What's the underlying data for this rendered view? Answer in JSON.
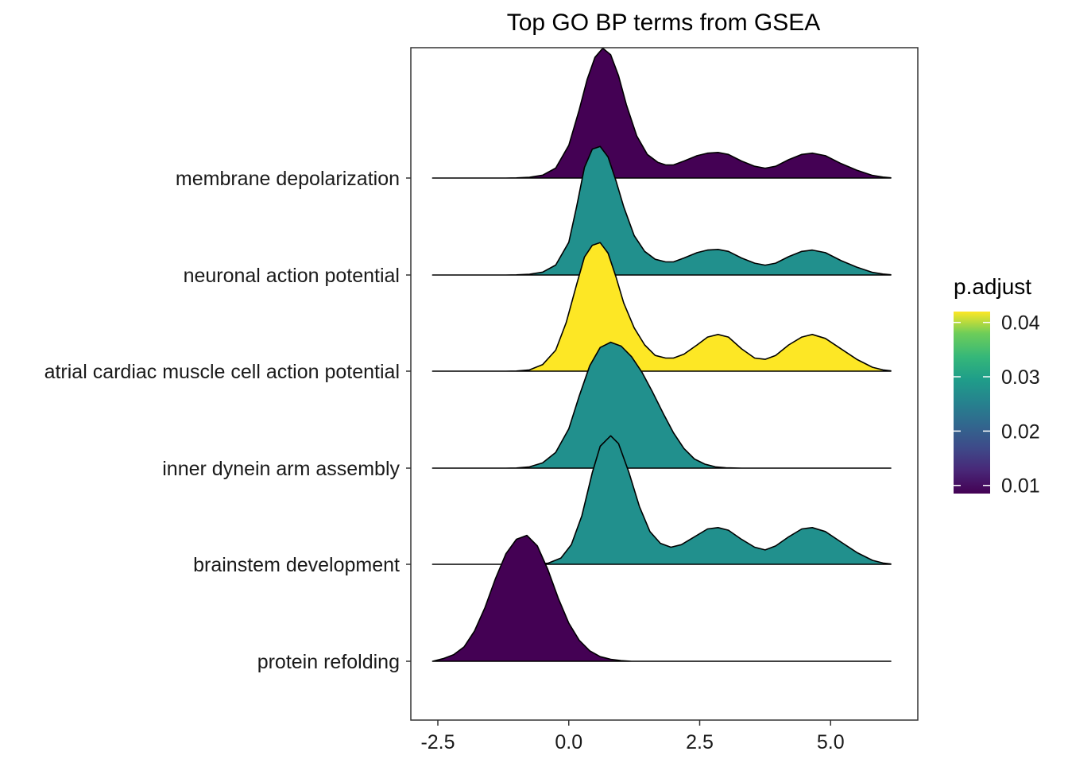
{
  "chart_data": {
    "type": "ridgeline",
    "title": "Top GO BP terms from GSEA",
    "xlabel": "",
    "ylabel": "",
    "xlim": [
      -3.0,
      6.5
    ],
    "x_ticks": [
      -2.5,
      0.0,
      2.5,
      5.0
    ],
    "x_tick_labels": [
      "-2.5",
      "0.0",
      "2.5",
      "5.0"
    ],
    "grid": false,
    "categories": [
      "membrane depolarization",
      "neuronal action potential",
      "atrial cardiac muscle cell action potential",
      "inner dynein arm assembly",
      "brainstem development",
      "protein refolding"
    ],
    "series": [
      {
        "category": "membrane depolarization",
        "p_adjust": 0.0085,
        "color": "#440154",
        "density": [
          [
            -2.6,
            0.0
          ],
          [
            -1.2,
            0.0
          ],
          [
            -1.0,
            0.001
          ],
          [
            -0.75,
            0.006
          ],
          [
            -0.5,
            0.022
          ],
          [
            -0.25,
            0.076
          ],
          [
            0.0,
            0.25
          ],
          [
            0.2,
            0.52
          ],
          [
            0.35,
            0.75
          ],
          [
            0.5,
            0.92
          ],
          [
            0.65,
            0.99
          ],
          [
            0.8,
            0.94
          ],
          [
            0.95,
            0.78
          ],
          [
            1.1,
            0.56
          ],
          [
            1.3,
            0.32
          ],
          [
            1.5,
            0.18
          ],
          [
            1.7,
            0.12
          ],
          [
            1.85,
            0.1
          ],
          [
            2.0,
            0.1
          ],
          [
            2.2,
            0.13
          ],
          [
            2.45,
            0.17
          ],
          [
            2.65,
            0.19
          ],
          [
            2.85,
            0.195
          ],
          [
            3.05,
            0.18
          ],
          [
            3.3,
            0.13
          ],
          [
            3.55,
            0.09
          ],
          [
            3.75,
            0.075
          ],
          [
            3.95,
            0.09
          ],
          [
            4.2,
            0.14
          ],
          [
            4.45,
            0.18
          ],
          [
            4.65,
            0.19
          ],
          [
            4.9,
            0.17
          ],
          [
            5.2,
            0.11
          ],
          [
            5.5,
            0.06
          ],
          [
            5.8,
            0.02
          ],
          [
            6.0,
            0.007
          ],
          [
            6.15,
            0.002
          ]
        ]
      },
      {
        "category": "neuronal action potential",
        "p_adjust": 0.0275,
        "color": "#21908D",
        "density": [
          [
            -2.6,
            0.0
          ],
          [
            -1.2,
            0.0
          ],
          [
            -1.0,
            0.001
          ],
          [
            -0.75,
            0.006
          ],
          [
            -0.5,
            0.022
          ],
          [
            -0.25,
            0.076
          ],
          [
            0.0,
            0.25
          ],
          [
            0.15,
            0.52
          ],
          [
            0.3,
            0.82
          ],
          [
            0.45,
            0.96
          ],
          [
            0.6,
            0.98
          ],
          [
            0.75,
            0.9
          ],
          [
            0.9,
            0.72
          ],
          [
            1.05,
            0.52
          ],
          [
            1.25,
            0.3
          ],
          [
            1.45,
            0.18
          ],
          [
            1.65,
            0.12
          ],
          [
            1.85,
            0.1
          ],
          [
            2.0,
            0.1
          ],
          [
            2.2,
            0.13
          ],
          [
            2.45,
            0.17
          ],
          [
            2.65,
            0.19
          ],
          [
            2.85,
            0.195
          ],
          [
            3.05,
            0.18
          ],
          [
            3.3,
            0.13
          ],
          [
            3.55,
            0.09
          ],
          [
            3.75,
            0.075
          ],
          [
            3.95,
            0.09
          ],
          [
            4.2,
            0.14
          ],
          [
            4.45,
            0.18
          ],
          [
            4.65,
            0.19
          ],
          [
            4.9,
            0.17
          ],
          [
            5.2,
            0.11
          ],
          [
            5.5,
            0.06
          ],
          [
            5.8,
            0.02
          ],
          [
            6.0,
            0.007
          ],
          [
            6.15,
            0.002
          ]
        ]
      },
      {
        "category": "atrial cardiac muscle cell action potential",
        "p_adjust": 0.041,
        "color": "#FDE725",
        "density": [
          [
            -2.6,
            0.0
          ],
          [
            -1.2,
            0.0
          ],
          [
            -1.0,
            0.001
          ],
          [
            -0.75,
            0.01
          ],
          [
            -0.5,
            0.05
          ],
          [
            -0.25,
            0.16
          ],
          [
            -0.05,
            0.37
          ],
          [
            0.15,
            0.66
          ],
          [
            0.3,
            0.87
          ],
          [
            0.45,
            0.96
          ],
          [
            0.6,
            0.98
          ],
          [
            0.75,
            0.9
          ],
          [
            0.9,
            0.72
          ],
          [
            1.05,
            0.52
          ],
          [
            1.25,
            0.33
          ],
          [
            1.45,
            0.2
          ],
          [
            1.65,
            0.12
          ],
          [
            1.85,
            0.1
          ],
          [
            2.0,
            0.1
          ],
          [
            2.2,
            0.13
          ],
          [
            2.45,
            0.2
          ],
          [
            2.65,
            0.26
          ],
          [
            2.85,
            0.28
          ],
          [
            3.05,
            0.26
          ],
          [
            3.3,
            0.17
          ],
          [
            3.55,
            0.1
          ],
          [
            3.75,
            0.09
          ],
          [
            3.95,
            0.12
          ],
          [
            4.2,
            0.2
          ],
          [
            4.45,
            0.26
          ],
          [
            4.65,
            0.28
          ],
          [
            4.9,
            0.25
          ],
          [
            5.2,
            0.17
          ],
          [
            5.5,
            0.09
          ],
          [
            5.8,
            0.03
          ],
          [
            6.0,
            0.01
          ],
          [
            6.15,
            0.003
          ]
        ]
      },
      {
        "category": "inner dynein arm assembly",
        "p_adjust": 0.0275,
        "color": "#21908D",
        "density": [
          [
            -2.6,
            0.0
          ],
          [
            -1.2,
            0.0
          ],
          [
            -1.0,
            0.001
          ],
          [
            -0.75,
            0.01
          ],
          [
            -0.5,
            0.04
          ],
          [
            -0.25,
            0.12
          ],
          [
            0.0,
            0.3
          ],
          [
            0.2,
            0.55
          ],
          [
            0.4,
            0.78
          ],
          [
            0.6,
            0.92
          ],
          [
            0.8,
            0.96
          ],
          [
            1.0,
            0.93
          ],
          [
            1.2,
            0.85
          ],
          [
            1.4,
            0.73
          ],
          [
            1.6,
            0.58
          ],
          [
            1.8,
            0.42
          ],
          [
            2.0,
            0.27
          ],
          [
            2.2,
            0.15
          ],
          [
            2.4,
            0.07
          ],
          [
            2.6,
            0.03
          ],
          [
            2.8,
            0.01
          ],
          [
            3.0,
            0.003
          ],
          [
            3.3,
            0.0
          ],
          [
            6.15,
            0.0
          ]
        ]
      },
      {
        "category": "brainstem development",
        "p_adjust": 0.0275,
        "color": "#21908D",
        "density": [
          [
            -2.6,
            0.0
          ],
          [
            -1.0,
            0.0
          ],
          [
            -0.7,
            0.001
          ],
          [
            -0.4,
            0.008
          ],
          [
            -0.15,
            0.048
          ],
          [
            0.05,
            0.15
          ],
          [
            0.25,
            0.37
          ],
          [
            0.45,
            0.7
          ],
          [
            0.6,
            0.9
          ],
          [
            0.8,
            0.98
          ],
          [
            0.95,
            0.92
          ],
          [
            1.15,
            0.7
          ],
          [
            1.35,
            0.44
          ],
          [
            1.55,
            0.25
          ],
          [
            1.75,
            0.16
          ],
          [
            1.95,
            0.13
          ],
          [
            2.15,
            0.15
          ],
          [
            2.4,
            0.21
          ],
          [
            2.65,
            0.27
          ],
          [
            2.85,
            0.28
          ],
          [
            3.05,
            0.26
          ],
          [
            3.3,
            0.19
          ],
          [
            3.55,
            0.13
          ],
          [
            3.75,
            0.11
          ],
          [
            3.95,
            0.14
          ],
          [
            4.2,
            0.21
          ],
          [
            4.45,
            0.27
          ],
          [
            4.65,
            0.28
          ],
          [
            4.9,
            0.25
          ],
          [
            5.2,
            0.17
          ],
          [
            5.5,
            0.09
          ],
          [
            5.8,
            0.03
          ],
          [
            6.0,
            0.01
          ],
          [
            6.15,
            0.003
          ]
        ]
      },
      {
        "category": "protein refolding",
        "p_adjust": 0.0085,
        "color": "#440154",
        "density": [
          [
            -2.6,
            0.0
          ],
          [
            -2.4,
            0.02
          ],
          [
            -2.2,
            0.05
          ],
          [
            -2.0,
            0.11
          ],
          [
            -1.8,
            0.23
          ],
          [
            -1.6,
            0.41
          ],
          [
            -1.4,
            0.63
          ],
          [
            -1.2,
            0.82
          ],
          [
            -1.0,
            0.93
          ],
          [
            -0.8,
            0.96
          ],
          [
            -0.6,
            0.88
          ],
          [
            -0.4,
            0.7
          ],
          [
            -0.2,
            0.48
          ],
          [
            0.0,
            0.29
          ],
          [
            0.2,
            0.16
          ],
          [
            0.4,
            0.08
          ],
          [
            0.6,
            0.035
          ],
          [
            0.8,
            0.015
          ],
          [
            1.0,
            0.005
          ],
          [
            1.2,
            0.0
          ],
          [
            6.15,
            0.0
          ]
        ]
      }
    ],
    "legend": {
      "title": "p.adjust",
      "position": "right",
      "scale": "viridis",
      "ticks": [
        0.01,
        0.02,
        0.03,
        0.04
      ],
      "tick_labels": [
        "0.01",
        "0.02",
        "0.03",
        "0.04"
      ],
      "range": [
        0.0085,
        0.042
      ]
    }
  }
}
